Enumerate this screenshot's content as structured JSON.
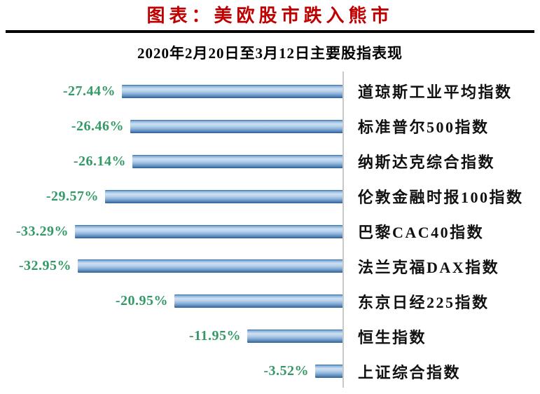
{
  "header": {
    "title": "图表：美欧股市跌入熊市",
    "title_color": "#c00000",
    "rule_color": "#000000"
  },
  "chart_data": {
    "type": "bar",
    "orientation": "horizontal",
    "title": "2020年2月20日至3月12日主要股指表现",
    "categories": [
      "道琼斯工业平均指数",
      "标准普尔500指数",
      "纳斯达克综合指数",
      "伦敦金融时报100指数",
      "巴黎CAC40指数",
      "法兰克福DAX指数",
      "东京日经225指数",
      "恒生指数",
      "上证综合指数"
    ],
    "values": [
      -27.44,
      -26.46,
      -26.14,
      -29.57,
      -33.29,
      -32.95,
      -20.95,
      -11.95,
      -3.52
    ],
    "labels": [
      "-27.44%",
      "-26.46%",
      "-26.14%",
      "-29.57%",
      "-33.29%",
      "-32.95%",
      "-20.95%",
      "-11.95%",
      "-3.52%"
    ],
    "value_suffix": "%",
    "xlim": [
      -35,
      0
    ],
    "grid": false,
    "legend": "none",
    "bar_color": "#4f81bd",
    "value_label_color": "#339966",
    "axis_line_color": "#c9c9c9"
  }
}
